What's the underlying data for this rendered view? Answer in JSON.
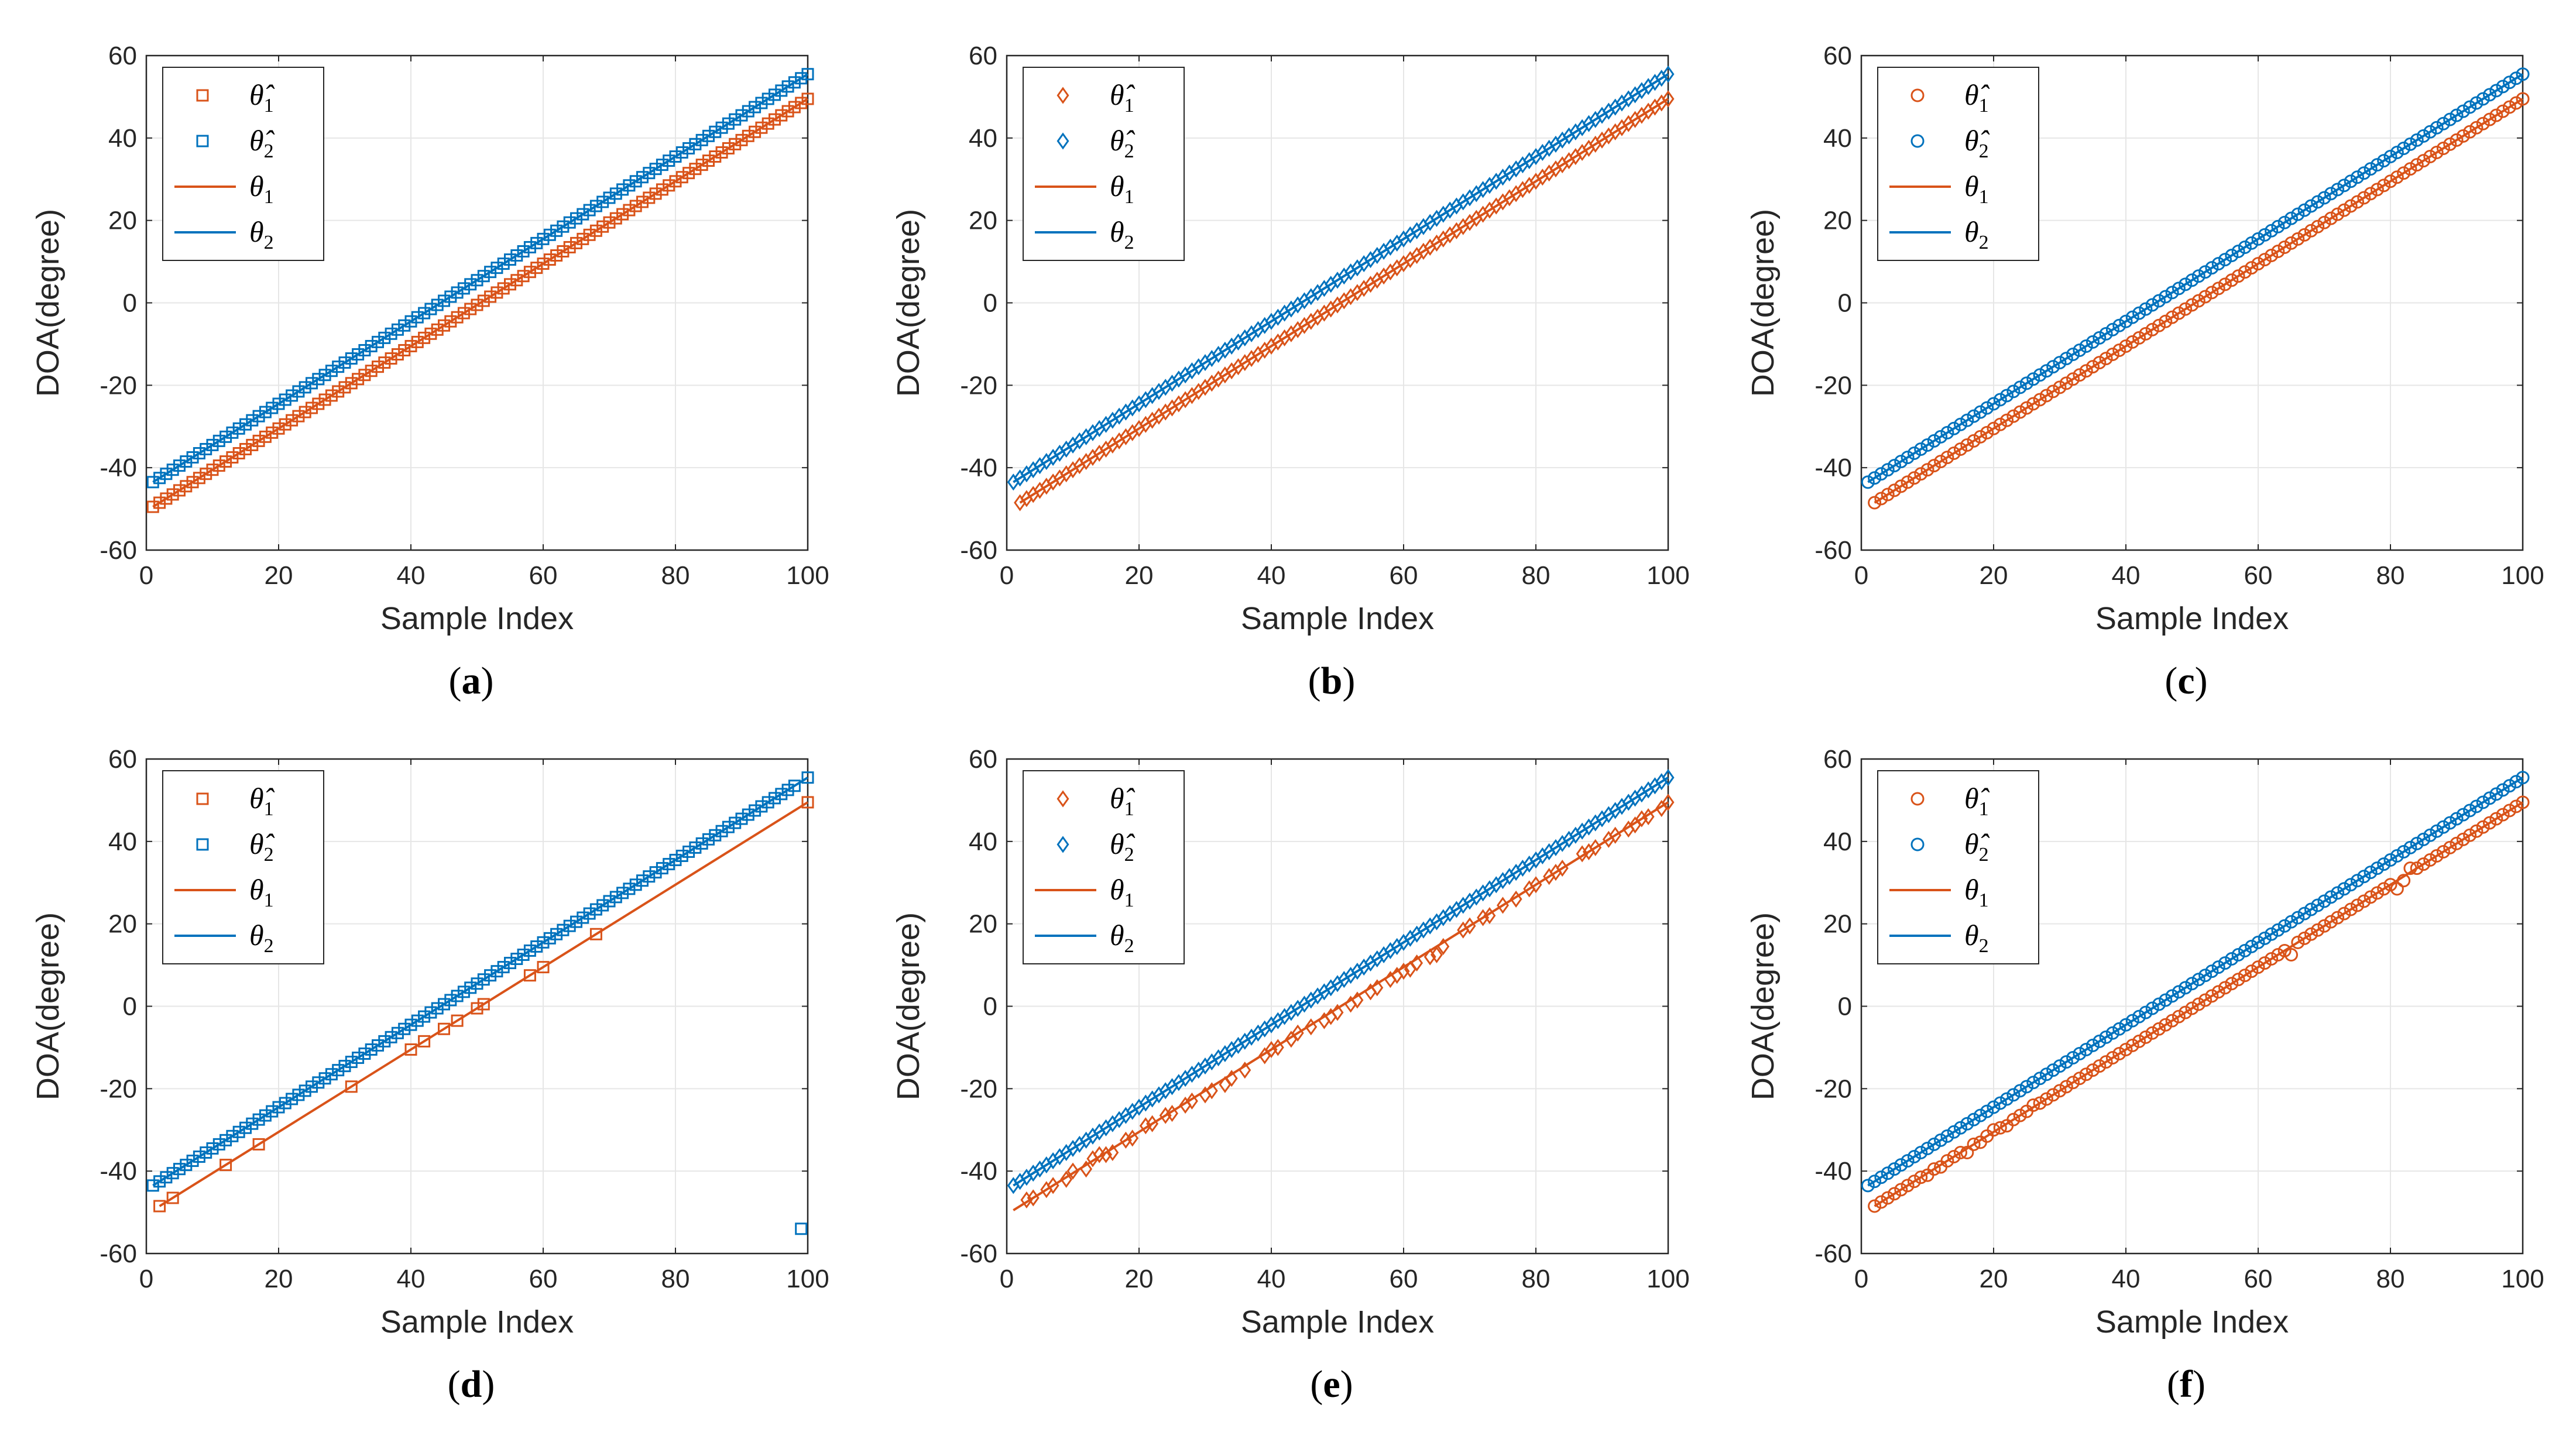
{
  "figure": {
    "layout": "2x3 grid of line/marker charts"
  },
  "colors": {
    "theta1": "#d95319",
    "theta2": "#0072bd",
    "grid": "#e6e6e6",
    "axis": "#262626"
  },
  "chart_data": [
    {
      "panel_id": "a",
      "caption": "(a)",
      "type": "scatter",
      "marker": "square",
      "xlabel": "Sample Index",
      "ylabel": "DOA(degree)",
      "xlim": [
        0,
        100
      ],
      "ylim": [
        -60,
        60
      ],
      "xticks": [
        "0",
        "20",
        "40",
        "60",
        "80",
        "100"
      ],
      "yticks": [
        "60",
        "40",
        "20",
        "0",
        "-20",
        "-40",
        "-60"
      ],
      "grid": true,
      "legend_position": "top-left",
      "legend": [
        {
          "symbol": "θ̂",
          "sub": "1",
          "kind": "marker",
          "series": "theta1"
        },
        {
          "symbol": "θ̂",
          "sub": "2",
          "kind": "marker",
          "series": "theta2"
        },
        {
          "symbol": "θ",
          "sub": "1",
          "kind": "line",
          "series": "theta1"
        },
        {
          "symbol": "θ",
          "sub": "2",
          "kind": "line",
          "series": "theta2"
        }
      ],
      "true_lines": {
        "theta1": {
          "x": [
            1,
            100
          ],
          "y": [
            -49.5,
            49.5
          ]
        },
        "theta2": {
          "x": [
            1,
            100
          ],
          "y": [
            -43.5,
            55.5
          ]
        }
      },
      "estimates": {
        "theta1": {
          "x_range": [
            1,
            100
          ],
          "step": 1,
          "y_start": -49.5,
          "y_end": 49.5,
          "outliers": []
        },
        "theta2": {
          "x_range": [
            1,
            100
          ],
          "step": 1,
          "y_start": -43.5,
          "y_end": 55.5,
          "outliers": []
        }
      }
    },
    {
      "panel_id": "b",
      "caption": "(b)",
      "type": "scatter",
      "marker": "diamond",
      "xlabel": "Sample Index",
      "ylabel": "DOA(degree)",
      "xlim": [
        0,
        100
      ],
      "ylim": [
        -60,
        60
      ],
      "xticks": [
        "0",
        "20",
        "40",
        "60",
        "80",
        "100"
      ],
      "yticks": [
        "60",
        "40",
        "20",
        "0",
        "-20",
        "-40",
        "-60"
      ],
      "grid": true,
      "legend_position": "top-left",
      "legend": [
        {
          "symbol": "θ̂",
          "sub": "1",
          "kind": "marker",
          "series": "theta1"
        },
        {
          "symbol": "θ̂",
          "sub": "2",
          "kind": "marker",
          "series": "theta2"
        },
        {
          "symbol": "θ",
          "sub": "1",
          "kind": "line",
          "series": "theta1"
        },
        {
          "symbol": "θ",
          "sub": "2",
          "kind": "line",
          "series": "theta2"
        }
      ],
      "true_lines": {
        "theta1": {
          "x": [
            2,
            100
          ],
          "y": [
            -48.5,
            49.5
          ]
        },
        "theta2": {
          "x": [
            1,
            100
          ],
          "y": [
            -43.5,
            55.5
          ]
        }
      },
      "estimates": {
        "theta1": {
          "x_range": [
            2,
            100
          ],
          "step": 1,
          "y_start": -48.5,
          "y_end": 49.5,
          "outliers": []
        },
        "theta2": {
          "x_range": [
            1,
            100
          ],
          "step": 1,
          "y_start": -43.5,
          "y_end": 55.5,
          "outliers": []
        }
      }
    },
    {
      "panel_id": "c",
      "caption": "(c)",
      "type": "scatter",
      "marker": "circle",
      "xlabel": "Sample Index",
      "ylabel": "DOA(degree)",
      "xlim": [
        0,
        100
      ],
      "ylim": [
        -60,
        60
      ],
      "xticks": [
        "0",
        "20",
        "40",
        "60",
        "80",
        "100"
      ],
      "yticks": [
        "60",
        "40",
        "20",
        "0",
        "-20",
        "-40",
        "-60"
      ],
      "grid": true,
      "legend_position": "top-left",
      "legend": [
        {
          "symbol": "θ̂",
          "sub": "1",
          "kind": "marker",
          "series": "theta1"
        },
        {
          "symbol": "θ̂",
          "sub": "2",
          "kind": "marker",
          "series": "theta2"
        },
        {
          "symbol": "θ",
          "sub": "1",
          "kind": "line",
          "series": "theta1"
        },
        {
          "symbol": "θ",
          "sub": "2",
          "kind": "line",
          "series": "theta2"
        }
      ],
      "true_lines": {
        "theta1": {
          "x": [
            2,
            100
          ],
          "y": [
            -48.5,
            49.5
          ]
        },
        "theta2": {
          "x": [
            1,
            100
          ],
          "y": [
            -43.5,
            55.5
          ]
        }
      },
      "estimates": {
        "theta1": {
          "x_range": [
            2,
            100
          ],
          "step": 1,
          "y_start": -48.5,
          "y_end": 49.5,
          "outliers": []
        },
        "theta2": {
          "x_range": [
            1,
            100
          ],
          "step": 1,
          "y_start": -43.5,
          "y_end": 55.5,
          "outliers": []
        }
      }
    },
    {
      "panel_id": "d",
      "caption": "(d)",
      "type": "scatter",
      "marker": "square",
      "xlabel": "Sample Index",
      "ylabel": "DOA(degree)",
      "xlim": [
        0,
        100
      ],
      "ylim": [
        -60,
        60
      ],
      "xticks": [
        "0",
        "20",
        "40",
        "60",
        "80",
        "100"
      ],
      "yticks": [
        "60",
        "40",
        "20",
        "0",
        "-20",
        "-40",
        "-60"
      ],
      "grid": true,
      "legend_position": "top-left",
      "legend": [
        {
          "symbol": "θ̂",
          "sub": "1",
          "kind": "marker",
          "series": "theta1"
        },
        {
          "symbol": "θ̂",
          "sub": "2",
          "kind": "marker",
          "series": "theta2"
        },
        {
          "symbol": "θ",
          "sub": "1",
          "kind": "line",
          "series": "theta1"
        },
        {
          "symbol": "θ",
          "sub": "2",
          "kind": "line",
          "series": "theta2"
        }
      ],
      "true_lines": {
        "theta1": {
          "x": [
            2,
            100
          ],
          "y": [
            -48.5,
            49.5
          ]
        },
        "theta2": {
          "x": [
            1,
            100
          ],
          "y": [
            -43.5,
            55.5
          ]
        }
      },
      "estimates": {
        "theta1": {
          "x": [
            2,
            4,
            12,
            17,
            31,
            40,
            42,
            45,
            47,
            50,
            51,
            58,
            60,
            68,
            100
          ],
          "y": [
            -48.5,
            -46.5,
            -38.5,
            -33.5,
            -19.5,
            -10.5,
            -8.5,
            -5.5,
            -3.5,
            -0.5,
            0.5,
            7.5,
            9.5,
            17.5,
            49.5
          ]
        },
        "theta2": {
          "x_range": [
            1,
            100
          ],
          "step": 1,
          "y_start": -43.5,
          "y_end": 55.5,
          "outliers": [
            {
              "x": 99,
              "y": -54
            }
          ]
        }
      }
    },
    {
      "panel_id": "e",
      "caption": "(e)",
      "type": "scatter",
      "marker": "diamond",
      "xlabel": "Sample Index",
      "ylabel": "DOA(degree)",
      "xlim": [
        0,
        100
      ],
      "ylim": [
        -60,
        60
      ],
      "xticks": [
        "0",
        "20",
        "40",
        "60",
        "80",
        "100"
      ],
      "yticks": [
        "60",
        "40",
        "20",
        "0",
        "-20",
        "-40",
        "-60"
      ],
      "grid": true,
      "legend_position": "top-left",
      "legend": [
        {
          "symbol": "θ̂",
          "sub": "1",
          "kind": "marker",
          "series": "theta1"
        },
        {
          "symbol": "θ̂",
          "sub": "2",
          "kind": "marker",
          "series": "theta2"
        },
        {
          "symbol": "θ",
          "sub": "1",
          "kind": "line",
          "series": "theta1"
        },
        {
          "symbol": "θ",
          "sub": "2",
          "kind": "line",
          "series": "theta2"
        }
      ],
      "true_lines": {
        "theta1": {
          "x": [
            1,
            100
          ],
          "y": [
            -49.5,
            49.5
          ]
        },
        "theta2": {
          "x": [
            1,
            100
          ],
          "y": [
            -43.5,
            55.5
          ]
        }
      },
      "estimates": {
        "theta1": {
          "x": [
            3,
            4,
            6,
            7,
            9,
            10,
            12,
            13,
            14,
            15,
            16,
            18,
            19,
            21,
            22,
            24,
            25,
            27,
            28,
            30,
            31,
            33,
            34,
            36,
            39,
            40,
            41,
            43,
            44,
            46,
            48,
            49,
            50,
            52,
            53,
            55,
            56,
            58,
            59,
            60,
            61,
            62,
            64,
            65,
            66,
            69,
            70,
            72,
            73,
            75,
            77,
            79,
            80,
            82,
            83,
            84,
            87,
            88,
            89,
            91,
            92,
            94,
            95,
            96,
            97,
            99,
            100
          ],
          "y": [
            -47,
            -46.5,
            -44.5,
            -43.5,
            -42,
            -40,
            -39.5,
            -37,
            -36,
            -36,
            -35.5,
            -32.5,
            -32,
            -29,
            -28.5,
            -26.5,
            -26,
            -24,
            -23,
            -21.5,
            -20.5,
            -19,
            -17.5,
            -15.5,
            -12,
            -10.5,
            -10,
            -8,
            -6.5,
            -5,
            -3.5,
            -2.5,
            -1.5,
            0.5,
            1.5,
            3.5,
            4.5,
            6.5,
            7.5,
            8.5,
            9,
            10.5,
            12,
            12.5,
            14.5,
            18.5,
            19.5,
            21.5,
            22,
            24.5,
            26,
            28.5,
            29.5,
            31.5,
            32.5,
            33.5,
            37,
            37.5,
            38.5,
            40.5,
            41.5,
            43,
            44,
            45.5,
            46,
            48,
            49.5
          ]
        },
        "theta2": {
          "x_range": [
            1,
            100
          ],
          "step": 1,
          "y_start": -43.5,
          "y_end": 55.5,
          "outliers": []
        }
      }
    },
    {
      "panel_id": "f",
      "caption": "(f)",
      "type": "scatter",
      "marker": "circle",
      "xlabel": "Sample Index",
      "ylabel": "DOA(degree)",
      "xlim": [
        0,
        100
      ],
      "ylim": [
        -60,
        60
      ],
      "xticks": [
        "0",
        "20",
        "40",
        "60",
        "80",
        "100"
      ],
      "yticks": [
        "60",
        "40",
        "20",
        "0",
        "-20",
        "-40",
        "-60"
      ],
      "grid": true,
      "legend_position": "top-left",
      "legend": [
        {
          "symbol": "θ̂",
          "sub": "1",
          "kind": "marker",
          "series": "theta1"
        },
        {
          "symbol": "θ̂",
          "sub": "2",
          "kind": "marker",
          "series": "theta2"
        },
        {
          "symbol": "θ",
          "sub": "1",
          "kind": "line",
          "series": "theta1"
        },
        {
          "symbol": "θ",
          "sub": "2",
          "kind": "line",
          "series": "theta2"
        }
      ],
      "true_lines": {
        "theta1": {
          "x": [
            2,
            100
          ],
          "y": [
            -48.5,
            49.5
          ]
        },
        "theta2": {
          "x": [
            1,
            100
          ],
          "y": [
            -43.5,
            55.5
          ]
        }
      },
      "estimates": {
        "theta1": {
          "x": [
            2,
            3,
            4,
            5,
            6,
            7,
            8,
            9,
            10,
            11,
            12,
            13,
            14,
            15,
            16,
            17,
            18,
            19,
            20,
            21,
            22,
            23,
            24,
            25,
            26,
            27,
            28,
            29,
            30,
            31,
            32,
            33,
            34,
            35,
            36,
            37,
            38,
            39,
            40,
            41,
            42,
            43,
            44,
            45,
            46,
            47,
            48,
            49,
            50,
            51,
            52,
            53,
            54,
            55,
            56,
            57,
            58,
            59,
            60,
            61,
            62,
            63,
            64,
            65,
            66,
            67,
            68,
            69,
            70,
            71,
            72,
            73,
            74,
            75,
            76,
            77,
            78,
            79,
            80,
            81,
            82,
            83,
            84,
            85,
            86,
            87,
            88,
            89,
            90,
            91,
            92,
            93,
            94,
            95,
            96,
            97,
            98,
            99,
            100
          ],
          "y": [
            -48.5,
            -47.5,
            -46.5,
            -45.5,
            -44.5,
            -43.5,
            -42.5,
            -41.5,
            -41,
            -39.5,
            -39,
            -37.5,
            -36.5,
            -35.5,
            -35.5,
            -33.5,
            -33,
            -31.5,
            -30,
            -29.5,
            -29,
            -27.5,
            -26.5,
            -25.5,
            -24,
            -23.5,
            -22.5,
            -21.5,
            -20.5,
            -19.5,
            -18.5,
            -17.5,
            -16.5,
            -15.5,
            -14.5,
            -13.5,
            -12.5,
            -11.5,
            -10.5,
            -9.5,
            -8.5,
            -7.5,
            -6.5,
            -5.5,
            -4.5,
            -3.5,
            -2.5,
            -1.5,
            -0.5,
            0.5,
            1.5,
            2.5,
            3.5,
            4.5,
            5.5,
            6.5,
            7.5,
            8.5,
            9.5,
            10.5,
            11.5,
            12.5,
            13.5,
            12.5,
            15.5,
            16.5,
            17.5,
            18.5,
            19.5,
            20.5,
            21.5,
            22.5,
            23.5,
            24.5,
            25.5,
            26.5,
            27.5,
            28.5,
            29.5,
            28.5,
            30.5,
            33.5,
            33.5,
            34.5,
            35.5,
            36.5,
            37.5,
            38.5,
            39.5,
            40.5,
            41.5,
            42.5,
            43.5,
            44.5,
            45.5,
            46.5,
            47.5,
            48.5,
            49.5
          ]
        },
        "theta2": {
          "x_range": [
            1,
            100
          ],
          "step": 1,
          "y_start": -43.5,
          "y_end": 55.5,
          "outliers": []
        }
      }
    }
  ]
}
